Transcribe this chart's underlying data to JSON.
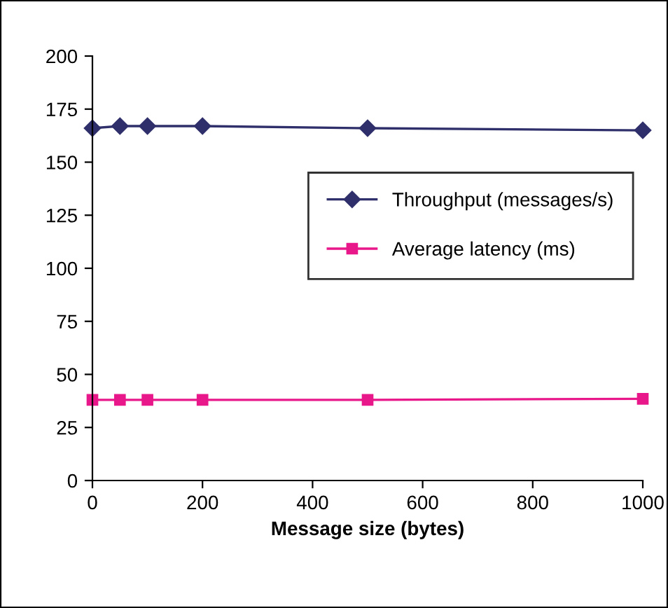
{
  "chart_data": {
    "type": "line",
    "xlabel": "Message size (bytes)",
    "x": [
      0,
      50,
      100,
      200,
      500,
      1000
    ],
    "series": [
      {
        "name": "Throughput (messages/s)",
        "color": "#2f2f6b",
        "marker": "diamond",
        "values": [
          166,
          167,
          167,
          167,
          166,
          165
        ]
      },
      {
        "name": "Average latency (ms)",
        "color": "#e8178a",
        "marker": "square",
        "values": [
          38,
          38,
          38,
          38,
          38,
          38.5
        ]
      }
    ],
    "xlim": [
      0,
      1000
    ],
    "xticks": [
      0,
      200,
      400,
      600,
      800,
      1000
    ],
    "ylim": [
      0,
      200
    ],
    "yticks": [
      0,
      25,
      50,
      75,
      100,
      125,
      150,
      175,
      200
    ],
    "grid": false,
    "legend": "center right"
  }
}
